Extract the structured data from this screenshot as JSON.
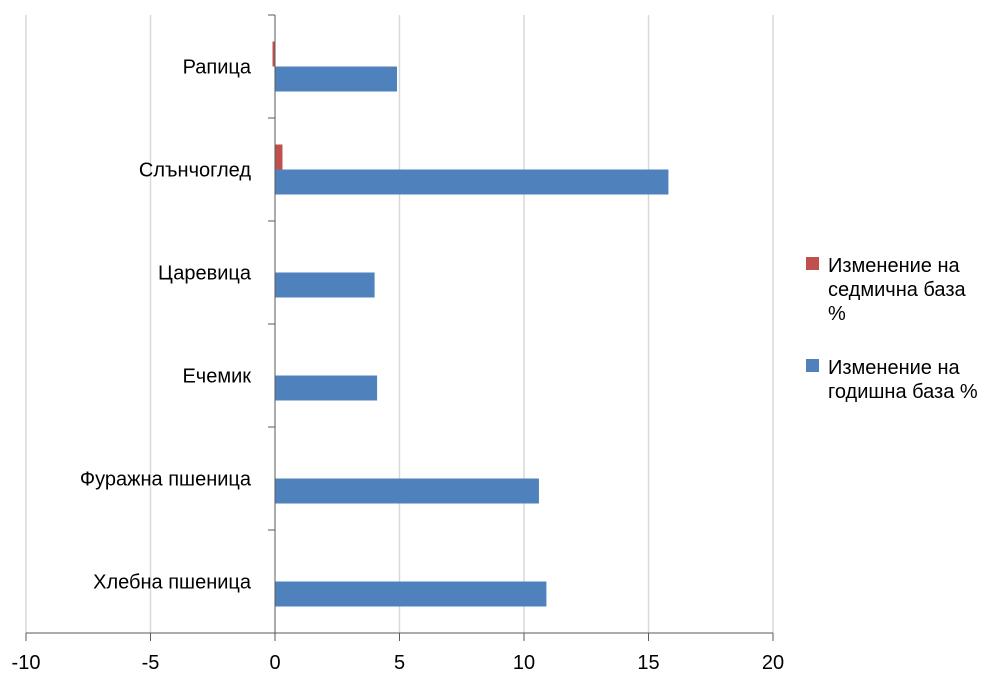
{
  "chart_data": {
    "type": "bar",
    "orientation": "horizontal",
    "categories": [
      "Хлебна пшеница",
      "Фуражна пшеница",
      "Ечемик",
      "Царевица",
      "Слънчоглед",
      "Рапица"
    ],
    "series": [
      {
        "name": "Изменение на седмична база %",
        "color": "#c0504d",
        "values": [
          0,
          0,
          0,
          0,
          0.3,
          -0.1
        ]
      },
      {
        "name": "Изменение на годишна база %",
        "color": "#4f81bd",
        "values": [
          10.9,
          10.6,
          4.1,
          4.0,
          15.8,
          4.9
        ]
      }
    ],
    "xlim": [
      -10,
      20
    ],
    "x_ticks": [
      "-10",
      "-5",
      "0",
      "5",
      "10",
      "15",
      "20"
    ],
    "grid": "vertical",
    "legend_position": "right"
  },
  "legend": {
    "weekly_label": "Изменение на седмична база %",
    "yearly_label": "Изменение на годишна база %"
  }
}
